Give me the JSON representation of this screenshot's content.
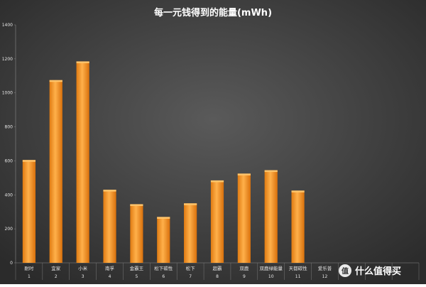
{
  "chart_data": {
    "type": "bar",
    "title": "每一元钱得到的能量(mWh)",
    "xlabel": "",
    "ylabel": "",
    "categories": [
      "耐时",
      "宜家",
      "小米",
      "南孚",
      "金霸王",
      "松下碳性",
      "松下",
      "超霸",
      "双鹿",
      "双鹿绿能量",
      "天都碳性",
      "爱乐普"
    ],
    "indices": [
      "1",
      "2",
      "3",
      "4",
      "5",
      "6",
      "7",
      "8",
      "9",
      "10",
      "11",
      "12"
    ],
    "values": [
      605,
      1075,
      1185,
      430,
      345,
      270,
      350,
      485,
      525,
      545,
      425,
      null
    ],
    "ylim": [
      0,
      1400
    ],
    "yticks": [
      0,
      200,
      400,
      600,
      800,
      1000,
      1200,
      1400
    ],
    "grid": false,
    "legend": "none",
    "colors": {
      "background": "#3a3a3a",
      "bar": "#f7941d",
      "bar_highlight": "#ffc46b",
      "text": "#e6e6e6"
    }
  },
  "watermark": {
    "text": "什么值得买",
    "icon": "zhi-logo-icon"
  }
}
